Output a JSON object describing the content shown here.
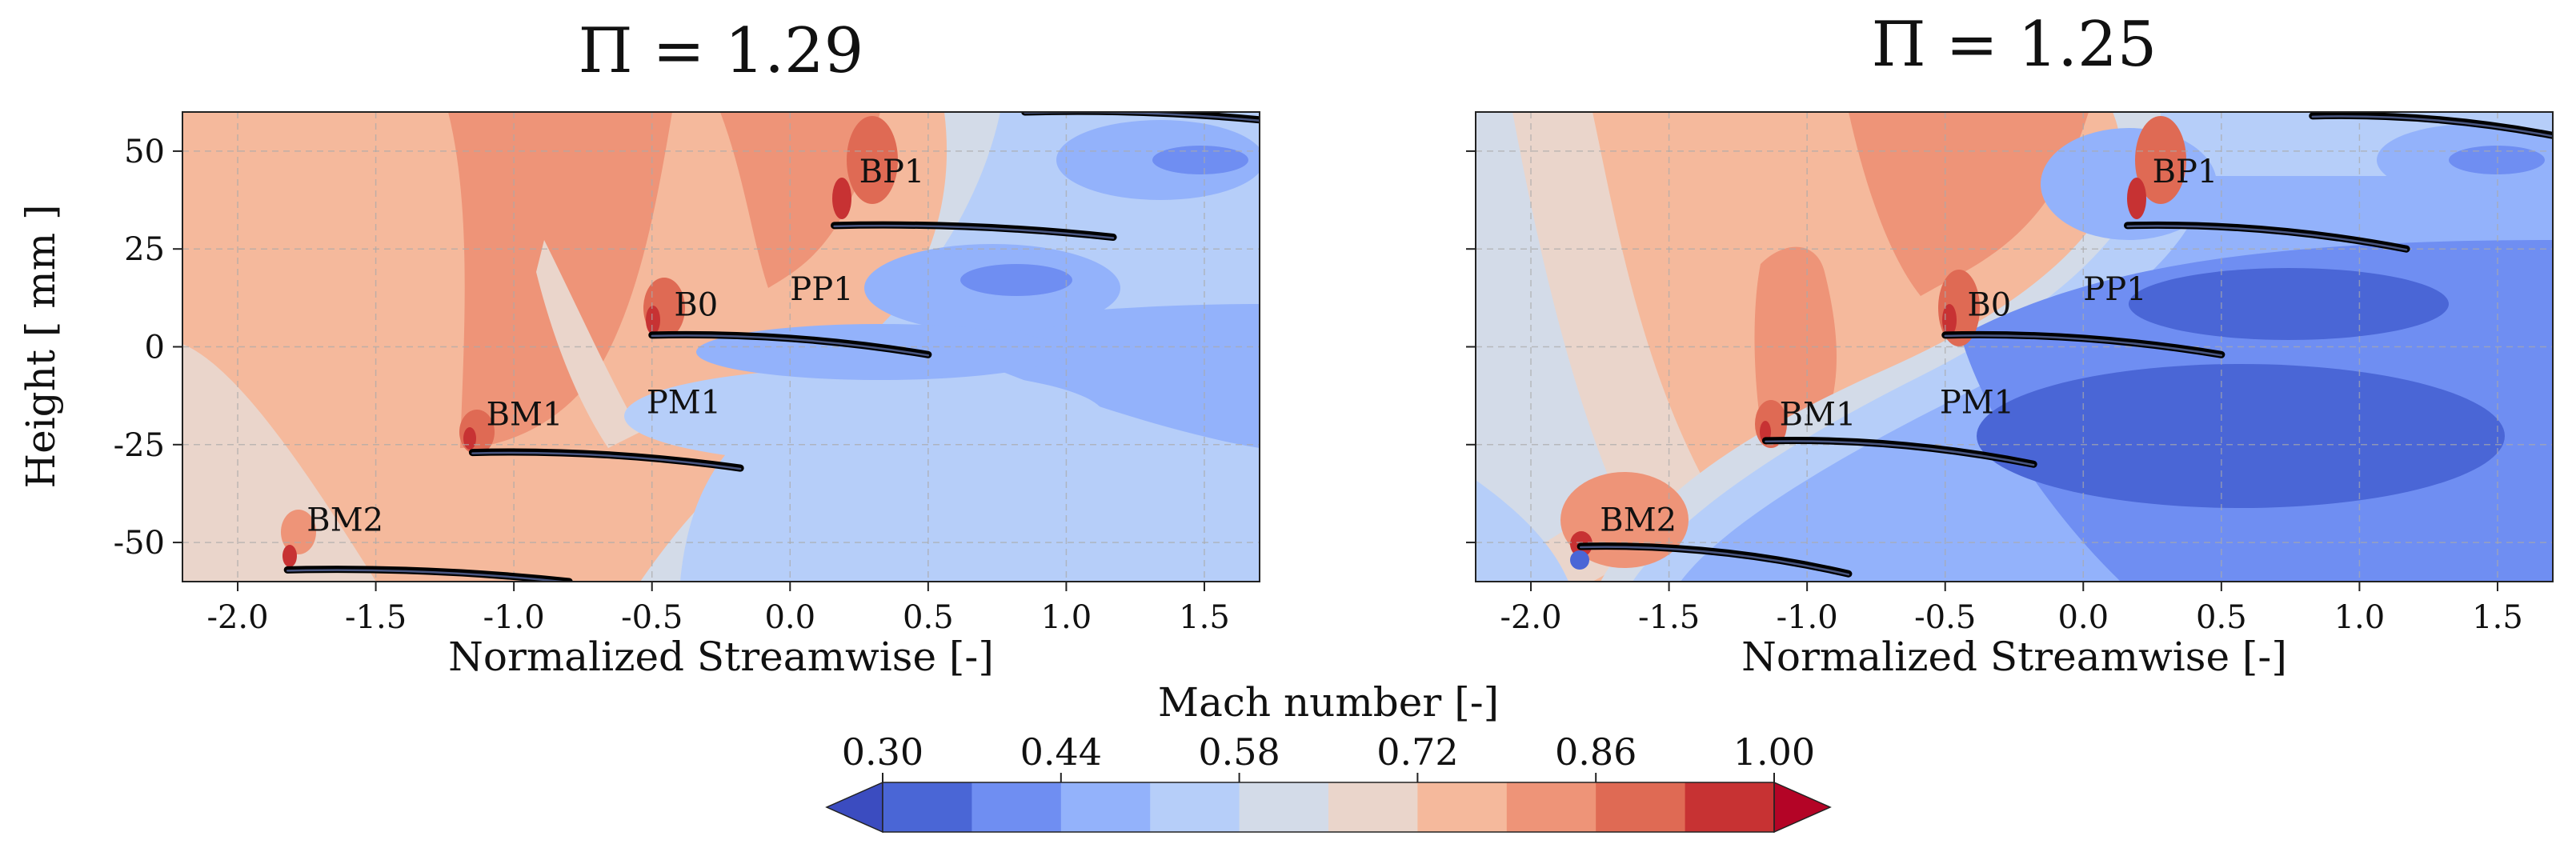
{
  "chart_data": [
    {
      "type": "heatmap",
      "title": "Π = 1.29",
      "xlabel": "Normalized Streamwise [-]",
      "ylabel": "Height [ mm ]",
      "xlim": [
        -2.2,
        1.7
      ],
      "ylim": [
        -60,
        60
      ],
      "x_ticks": [
        -2.0,
        -1.5,
        -1.0,
        -0.5,
        0.0,
        0.5,
        1.0,
        1.5
      ],
      "y_ticks": [
        50,
        25,
        0,
        -25,
        -50
      ],
      "grid": true,
      "annotations": [
        {
          "text": "BP1",
          "x": 0.25,
          "y": 42
        },
        {
          "text": "B0",
          "x": -0.42,
          "y": 8
        },
        {
          "text": "PP1",
          "x": 0.0,
          "y": 12
        },
        {
          "text": "PM1",
          "x": -0.52,
          "y": -17
        },
        {
          "text": "BM1",
          "x": -1.1,
          "y": -20
        },
        {
          "text": "BM2",
          "x": -1.75,
          "y": -47
        }
      ],
      "blades": [
        {
          "name": "BP1",
          "le": [
            0.16,
            31
          ],
          "te": [
            1.17,
            28
          ]
        },
        {
          "name": "B0",
          "le": [
            -0.5,
            3
          ],
          "te": [
            0.5,
            -2
          ]
        },
        {
          "name": "BM1",
          "le": [
            -1.15,
            -27
          ],
          "te": [
            -0.18,
            -31
          ]
        },
        {
          "name": "BM2",
          "le": [
            -1.82,
            -57
          ],
          "te": [
            -0.8,
            -60
          ]
        },
        {
          "name": "top",
          "le": [
            0.85,
            60
          ],
          "te": [
            1.7,
            58
          ]
        }
      ]
    },
    {
      "type": "heatmap",
      "title": "Π = 1.25",
      "xlabel": "Normalized Streamwise [-]",
      "ylabel": "",
      "xlim": [
        -2.2,
        1.7
      ],
      "ylim": [
        -60,
        60
      ],
      "x_ticks": [
        -2.0,
        -1.5,
        -1.0,
        -0.5,
        0.0,
        0.5,
        1.0,
        1.5
      ],
      "y_ticks": [
        50,
        25,
        0,
        -25,
        -50
      ],
      "grid": true,
      "annotations": [
        {
          "text": "BP1",
          "x": 0.25,
          "y": 42
        },
        {
          "text": "B0",
          "x": -0.42,
          "y": 8
        },
        {
          "text": "PP1",
          "x": 0.0,
          "y": 12
        },
        {
          "text": "PM1",
          "x": -0.52,
          "y": -17
        },
        {
          "text": "BM1",
          "x": -1.1,
          "y": -20
        },
        {
          "text": "BM2",
          "x": -1.75,
          "y": -47
        }
      ],
      "blades": [
        {
          "name": "BP1",
          "le": [
            0.16,
            31
          ],
          "te": [
            1.17,
            25
          ]
        },
        {
          "name": "B0",
          "le": [
            -0.5,
            3
          ],
          "te": [
            0.5,
            -2
          ]
        },
        {
          "name": "BM1",
          "le": [
            -1.15,
            -24
          ],
          "te": [
            -0.18,
            -30
          ]
        },
        {
          "name": "BM2",
          "le": [
            -1.82,
            -51
          ],
          "te": [
            -0.85,
            -58
          ]
        },
        {
          "name": "top",
          "le": [
            0.83,
            59
          ],
          "te": [
            1.7,
            54
          ]
        }
      ]
    }
  ],
  "colorbar": {
    "label": "Mach number [-]",
    "min": 0.3,
    "max": 1.0,
    "tick_values": [
      0.3,
      0.44,
      0.58,
      0.72,
      0.86,
      1.0
    ],
    "tick_labels": [
      "0.30",
      "0.44",
      "0.58",
      "0.72",
      "0.86",
      "1.00"
    ],
    "levels": [
      0.3,
      0.37,
      0.44,
      0.51,
      0.58,
      0.65,
      0.72,
      0.79,
      0.86,
      0.93,
      1.0
    ],
    "colors": [
      "#4a66d6",
      "#6f8ef2",
      "#93b2fb",
      "#b6cef9",
      "#d3dbe8",
      "#ead5cb",
      "#f5b99c",
      "#ee9478",
      "#df6a54",
      "#c73233"
    ],
    "under_color": "#3b4cc0",
    "over_color": "#b40426"
  }
}
